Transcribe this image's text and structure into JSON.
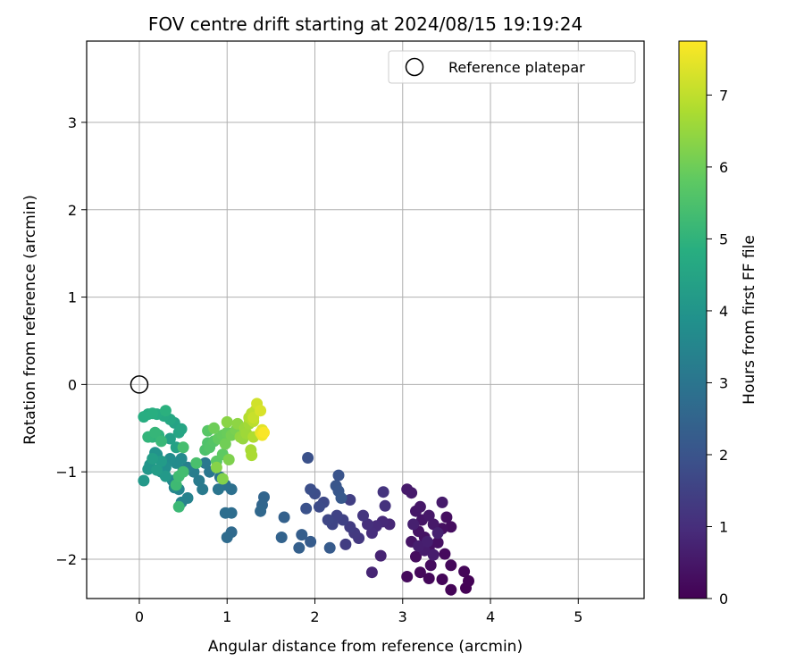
{
  "chart_data": {
    "type": "scatter",
    "title": "FOV centre drift starting at 2024/08/15 19:19:24",
    "xlabel": "Angular distance from reference (arcmin)",
    "ylabel": "Rotation from reference (arcmin)",
    "xlim": [
      -0.6,
      5.75
    ],
    "ylim": [
      -2.45,
      3.93
    ],
    "x_ticks": [
      0,
      1,
      2,
      3,
      4,
      5
    ],
    "y_ticks": [
      -2,
      -1,
      0,
      1,
      2,
      3
    ],
    "grid": true,
    "legend": {
      "position": "top-right",
      "entries": [
        "Reference platepar"
      ]
    },
    "reference_point": {
      "x": 0,
      "y": 0
    },
    "colorbar": {
      "label": "Hours from first FF file",
      "colormap": "viridis",
      "range": [
        0,
        7.75
      ],
      "ticks": [
        0,
        1,
        2,
        3,
        4,
        5,
        6,
        7
      ]
    },
    "points": [
      [
        3.72,
        -2.33,
        0.02
      ],
      [
        3.75,
        -2.25,
        0.05
      ],
      [
        3.55,
        -2.35,
        0.08
      ],
      [
        3.7,
        -2.14,
        0.1
      ],
      [
        3.45,
        -2.23,
        0.12
      ],
      [
        3.3,
        -2.22,
        0.14
      ],
      [
        3.55,
        -2.07,
        0.16
      ],
      [
        3.2,
        -2.15,
        0.18
      ],
      [
        3.05,
        -2.2,
        0.2
      ],
      [
        3.48,
        -1.94,
        0.22
      ],
      [
        3.32,
        -2.07,
        0.24
      ],
      [
        3.15,
        -1.97,
        0.26
      ],
      [
        3.55,
        -1.63,
        0.28
      ],
      [
        3.5,
        -1.52,
        0.3
      ],
      [
        3.45,
        -1.65,
        0.32
      ],
      [
        3.4,
        -1.81,
        0.34
      ],
      [
        3.3,
        -1.88,
        0.36
      ],
      [
        3.25,
        -1.75,
        0.38
      ],
      [
        3.18,
        -1.68,
        0.4
      ],
      [
        3.1,
        -1.8,
        0.42
      ],
      [
        3.22,
        -1.55,
        0.44
      ],
      [
        3.15,
        -1.45,
        0.46
      ],
      [
        3.2,
        -1.4,
        0.48
      ],
      [
        3.3,
        -1.5,
        0.5
      ],
      [
        3.35,
        -1.6,
        0.52
      ],
      [
        3.05,
        -1.2,
        0.54
      ],
      [
        3.1,
        -1.24,
        0.56
      ],
      [
        3.45,
        -1.35,
        0.58
      ],
      [
        3.25,
        -1.9,
        0.6
      ],
      [
        3.35,
        -1.95,
        0.62
      ],
      [
        3.18,
        -1.85,
        0.64
      ],
      [
        3.28,
        -1.8,
        0.66
      ],
      [
        3.12,
        -1.6,
        0.68
      ],
      [
        3.4,
        -1.7,
        0.7
      ],
      [
        2.75,
        -1.96,
        0.75
      ],
      [
        2.65,
        -2.15,
        0.8
      ],
      [
        2.85,
        -1.6,
        0.85
      ],
      [
        2.77,
        -1.57,
        0.9
      ],
      [
        2.7,
        -1.62,
        0.95
      ],
      [
        2.65,
        -1.7,
        1.0
      ],
      [
        2.6,
        -1.6,
        1.05
      ],
      [
        2.8,
        -1.39,
        1.1
      ],
      [
        2.78,
        -1.23,
        1.15
      ],
      [
        2.55,
        -1.5,
        1.2
      ],
      [
        2.5,
        -1.76,
        1.25
      ],
      [
        2.45,
        -1.7,
        1.3
      ],
      [
        2.4,
        -1.63,
        1.35
      ],
      [
        2.35,
        -1.83,
        1.4
      ],
      [
        2.4,
        -1.32,
        1.45
      ],
      [
        2.32,
        -1.55,
        1.5
      ],
      [
        2.25,
        -1.5,
        1.55
      ],
      [
        2.2,
        -1.6,
        1.6
      ],
      [
        2.15,
        -1.55,
        1.65
      ],
      [
        2.1,
        -1.35,
        1.7
      ],
      [
        2.05,
        -1.4,
        1.75
      ],
      [
        2.0,
        -1.25,
        1.8
      ],
      [
        1.95,
        -1.2,
        1.85
      ],
      [
        1.92,
        -0.84,
        1.9
      ],
      [
        1.9,
        -1.42,
        1.95
      ],
      [
        2.27,
        -1.04,
        2.0
      ],
      [
        2.24,
        -1.16,
        2.05
      ],
      [
        2.27,
        -1.22,
        2.1
      ],
      [
        2.3,
        -1.3,
        2.15
      ],
      [
        2.17,
        -1.87,
        2.2
      ],
      [
        1.95,
        -1.8,
        2.25
      ],
      [
        1.85,
        -1.72,
        2.3
      ],
      [
        1.82,
        -1.87,
        2.35
      ],
      [
        1.65,
        -1.52,
        2.4
      ],
      [
        1.62,
        -1.75,
        2.45
      ],
      [
        1.42,
        -1.29,
        2.5
      ],
      [
        1.4,
        -1.38,
        2.55
      ],
      [
        1.38,
        -1.45,
        2.6
      ],
      [
        1.05,
        -1.69,
        2.65
      ],
      [
        1.0,
        -1.75,
        2.7
      ],
      [
        1.05,
        -1.47,
        2.75
      ],
      [
        0.98,
        -1.47,
        2.8
      ],
      [
        1.05,
        -1.2,
        2.85
      ],
      [
        0.98,
        -1.15,
        2.9
      ],
      [
        0.92,
        -1.06,
        2.95
      ],
      [
        0.9,
        -1.2,
        3.0
      ],
      [
        0.8,
        -1.0,
        3.05
      ],
      [
        0.75,
        -0.9,
        3.1
      ],
      [
        0.72,
        -1.2,
        3.15
      ],
      [
        0.68,
        -1.1,
        3.2
      ],
      [
        0.62,
        -1.0,
        3.25
      ],
      [
        0.55,
        -0.95,
        3.3
      ],
      [
        0.5,
        -0.98,
        3.35
      ],
      [
        0.55,
        -1.3,
        3.4
      ],
      [
        0.48,
        -1.35,
        3.45
      ],
      [
        0.45,
        -1.2,
        3.5
      ],
      [
        0.4,
        -1.18,
        3.55
      ],
      [
        0.38,
        -1.1,
        3.6
      ],
      [
        0.48,
        -0.85,
        3.65
      ],
      [
        0.42,
        -0.9,
        3.7
      ],
      [
        0.35,
        -0.85,
        3.75
      ],
      [
        0.3,
        -0.95,
        3.8
      ],
      [
        0.25,
        -1.0,
        3.85
      ],
      [
        0.2,
        -0.8,
        3.9
      ],
      [
        0.18,
        -0.78,
        3.95
      ],
      [
        0.12,
        -0.92,
        4.0
      ],
      [
        0.1,
        -0.97,
        4.05
      ],
      [
        0.05,
        -1.1,
        4.1
      ],
      [
        0.3,
        -1.05,
        4.15
      ],
      [
        0.25,
        -0.88,
        4.2
      ],
      [
        0.2,
        -0.98,
        4.25
      ],
      [
        0.15,
        -0.85,
        4.3
      ],
      [
        0.35,
        -0.62,
        4.35
      ],
      [
        0.42,
        -0.72,
        4.4
      ],
      [
        0.4,
        -0.44,
        4.45
      ],
      [
        0.45,
        -0.55,
        4.5
      ],
      [
        0.48,
        -0.51,
        4.55
      ],
      [
        0.35,
        -0.4,
        4.6
      ],
      [
        0.28,
        -0.36,
        4.65
      ],
      [
        0.2,
        -0.34,
        4.7
      ],
      [
        0.1,
        -0.34,
        4.75
      ],
      [
        0.05,
        -0.37,
        4.8
      ],
      [
        0.15,
        -0.33,
        4.85
      ],
      [
        0.3,
        -0.3,
        4.9
      ],
      [
        0.22,
        -0.58,
        4.95
      ],
      [
        0.15,
        -0.6,
        5.0
      ],
      [
        0.1,
        -0.6,
        5.05
      ],
      [
        0.18,
        -0.55,
        5.1
      ],
      [
        0.25,
        -0.65,
        5.15
      ],
      [
        0.45,
        -1.4,
        5.2
      ],
      [
        0.42,
        -1.15,
        5.25
      ],
      [
        0.45,
        -1.05,
        5.3
      ],
      [
        0.5,
        -1.0,
        5.35
      ],
      [
        0.5,
        -0.72,
        5.4
      ],
      [
        0.65,
        -0.9,
        5.45
      ],
      [
        0.75,
        -0.75,
        5.5
      ],
      [
        0.78,
        -0.67,
        5.55
      ],
      [
        0.8,
        -0.72,
        5.6
      ],
      [
        0.85,
        -0.65,
        5.65
      ],
      [
        0.78,
        -0.53,
        5.7
      ],
      [
        0.88,
        -0.88,
        5.75
      ],
      [
        0.95,
        -0.8,
        5.8
      ],
      [
        0.9,
        -0.62,
        5.85
      ],
      [
        0.95,
        -0.58,
        5.9
      ],
      [
        1.0,
        -0.55,
        5.95
      ],
      [
        0.85,
        -0.5,
        6.0
      ],
      [
        0.98,
        -0.68,
        6.05
      ],
      [
        1.05,
        -0.58,
        6.1
      ],
      [
        1.1,
        -0.52,
        6.15
      ],
      [
        1.02,
        -0.86,
        6.2
      ],
      [
        0.95,
        -1.08,
        6.25
      ],
      [
        0.88,
        -0.95,
        6.3
      ],
      [
        1.0,
        -0.43,
        6.35
      ],
      [
        1.12,
        -0.45,
        6.4
      ],
      [
        1.15,
        -0.6,
        6.45
      ],
      [
        1.18,
        -0.62,
        6.5
      ],
      [
        1.2,
        -0.5,
        6.55
      ],
      [
        1.22,
        -0.56,
        6.6
      ],
      [
        1.25,
        -0.45,
        6.65
      ],
      [
        1.27,
        -0.75,
        6.7
      ],
      [
        1.28,
        -0.81,
        6.75
      ],
      [
        1.3,
        -0.6,
        6.8
      ],
      [
        1.25,
        -0.38,
        6.85
      ],
      [
        1.28,
        -0.33,
        6.9
      ],
      [
        1.3,
        -0.42,
        6.95
      ],
      [
        1.32,
        -0.3,
        7.0
      ],
      [
        1.3,
        -0.38,
        7.1
      ],
      [
        1.34,
        -0.22,
        7.2
      ],
      [
        1.38,
        -0.3,
        7.3
      ],
      [
        1.4,
        -0.52,
        7.4
      ],
      [
        1.38,
        -0.55,
        7.5
      ],
      [
        1.4,
        -0.58,
        7.6
      ],
      [
        1.42,
        -0.55,
        7.7
      ]
    ]
  }
}
